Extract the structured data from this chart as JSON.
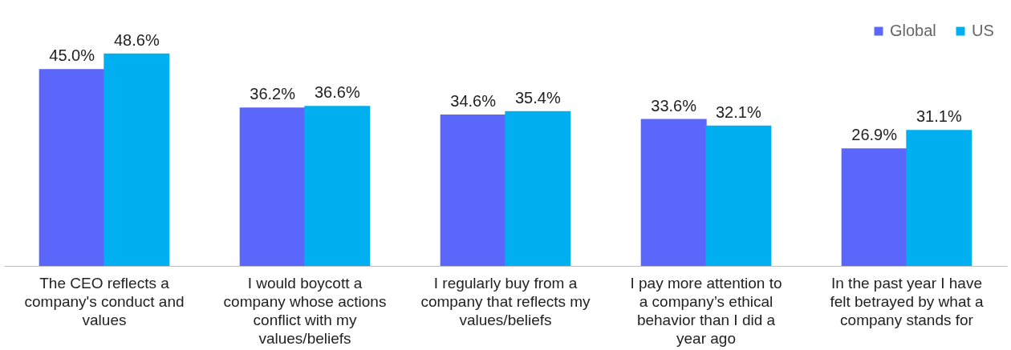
{
  "chart_data": {
    "type": "bar",
    "categories": [
      "The CEO reflects a company's conduct and values",
      "I would boycott a company whose actions conflict with my values/beliefs",
      "I regularly buy from a company that reflects my values/beliefs",
      "I pay more attention to a company’s ethical behavior than I did a year ago",
      "In the past year I have felt betrayed by what a company stands for"
    ],
    "series": [
      {
        "name": "Global",
        "color": "#5b66fb",
        "values": [
          45.0,
          36.2,
          34.6,
          33.6,
          26.9
        ],
        "value_labels": [
          "45.0%",
          "36.2%",
          "34.6%",
          "33.6%",
          "26.9%"
        ]
      },
      {
        "name": "US",
        "color": "#00aff0",
        "values": [
          48.6,
          36.6,
          35.4,
          32.1,
          31.1
        ],
        "value_labels": [
          "48.6%",
          "36.6%",
          "35.4%",
          "32.1%",
          "31.1%"
        ]
      }
    ],
    "legend": "top right",
    "grid": false
  }
}
